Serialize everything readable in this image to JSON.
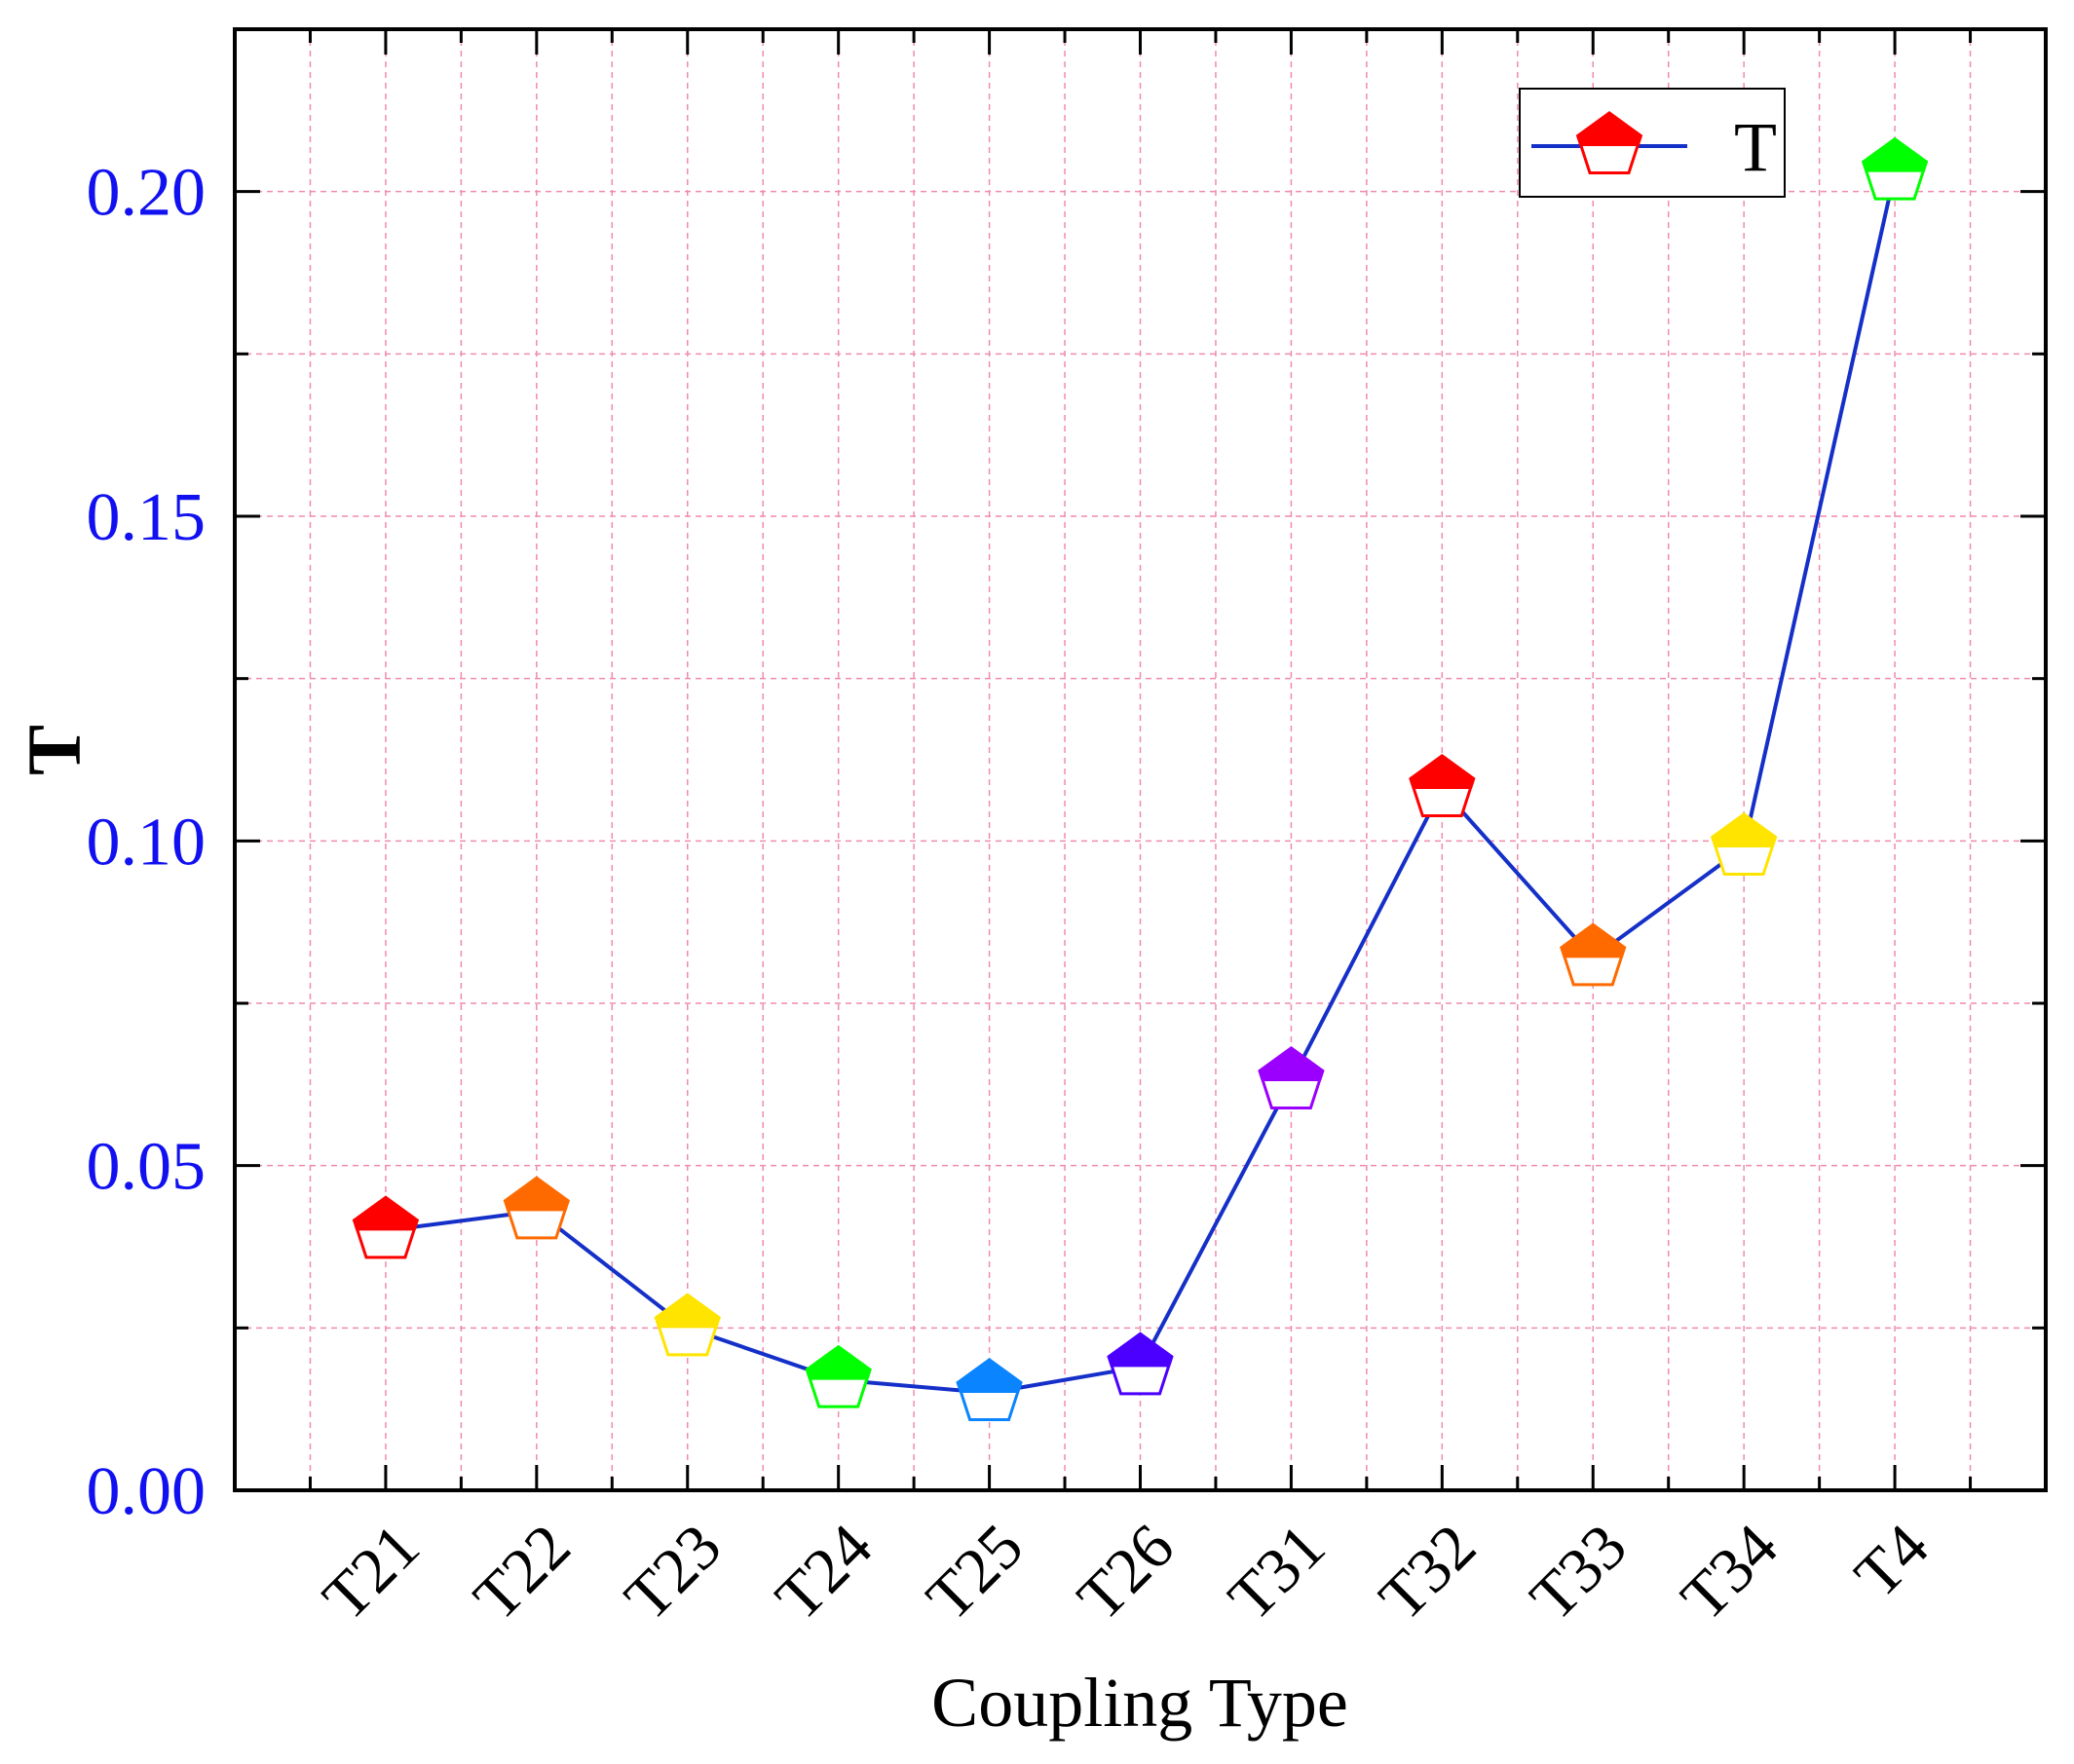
{
  "chart_data": {
    "type": "line",
    "xlabel": "Coupling Type",
    "ylabel": "T",
    "categories": [
      "T21",
      "T22",
      "T23",
      "T24",
      "T25",
      "T26",
      "T31",
      "T32",
      "T33",
      "T34",
      "T4"
    ],
    "series": [
      {
        "name": "T",
        "values": [
          0.04,
          0.043,
          0.025,
          0.017,
          0.015,
          0.019,
          0.063,
          0.108,
          0.082,
          0.099,
          0.203
        ],
        "line_color": "#1530c8",
        "marker": "pentagon",
        "marker_colors": [
          "#ff0000",
          "#ff6a00",
          "#ffe400",
          "#00ff00",
          "#0a84ff",
          "#4b00ff",
          "#9b00ff",
          "#ff0000",
          "#ff6a00",
          "#ffe400",
          "#00ff00"
        ]
      }
    ],
    "ylim": [
      0,
      0.225
    ],
    "yticks": [
      "0.00",
      "0.05",
      "0.10",
      "0.15",
      "0.20"
    ],
    "grid": true,
    "grid_color": "#f08cab",
    "legend": {
      "position": "top-right",
      "label": "T"
    },
    "ytick_color": "#1010f0"
  }
}
